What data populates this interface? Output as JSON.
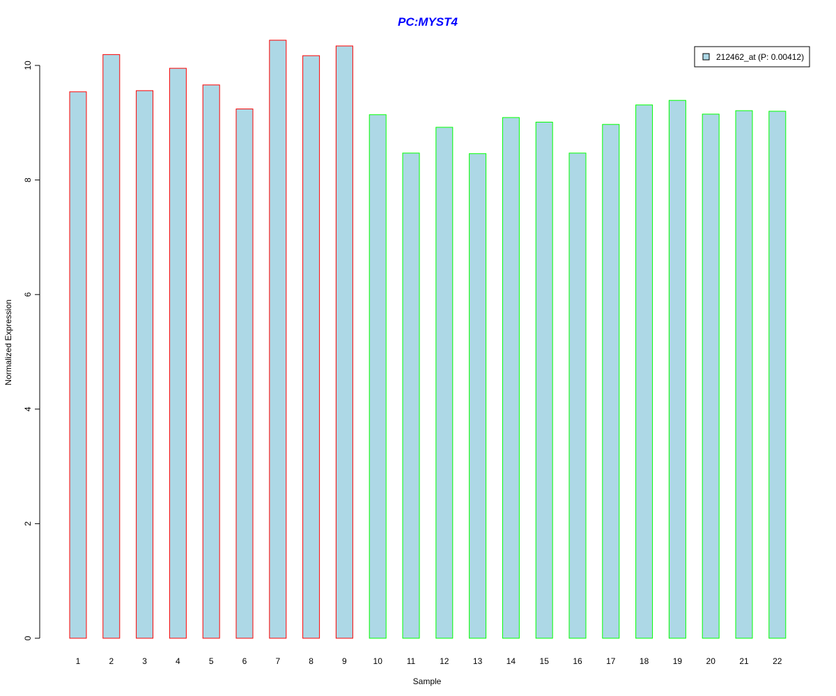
{
  "chart_data": {
    "type": "bar",
    "title": "PC:MYST4",
    "xlabel": "Sample",
    "ylabel": "Normalized Expression",
    "categories": [
      "1",
      "2",
      "3",
      "4",
      "5",
      "6",
      "7",
      "8",
      "9",
      "10",
      "11",
      "12",
      "13",
      "14",
      "15",
      "16",
      "17",
      "18",
      "19",
      "20",
      "21",
      "22"
    ],
    "series": [
      {
        "name": "212462_at (P: 0.00412)",
        "values": [
          9.54,
          10.19,
          9.56,
          9.95,
          9.66,
          9.24,
          10.44,
          10.17,
          10.34,
          9.14,
          8.47,
          8.92,
          8.46,
          9.09,
          9.01,
          8.47,
          8.97,
          9.31,
          9.39,
          9.15,
          9.21,
          9.2
        ]
      }
    ],
    "ylim": [
      0,
      10.44
    ],
    "yticks": [
      0,
      2,
      4,
      6,
      8,
      10
    ],
    "grid": false,
    "legend_position": "top-right",
    "colors": {
      "fill": "#add8e6",
      "group1_border": "#ff0000",
      "group2_border": "#00ff00",
      "title": "#0000ff"
    },
    "border_groups": [
      "group1",
      "group1",
      "group1",
      "group1",
      "group1",
      "group1",
      "group1",
      "group1",
      "group1",
      "group2",
      "group2",
      "group2",
      "group2",
      "group2",
      "group2",
      "group2",
      "group2",
      "group2",
      "group2",
      "group2",
      "group2",
      "group2"
    ]
  }
}
